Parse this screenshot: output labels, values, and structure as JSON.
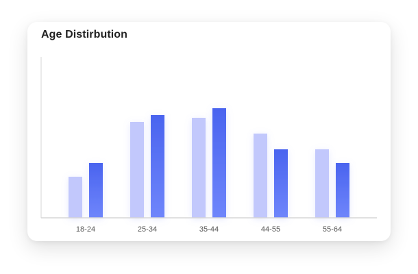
{
  "chart_data": {
    "type": "bar",
    "title": "Age Distirbution",
    "categories": [
      "18-24",
      "25-34",
      "35-44",
      "44-55",
      "55-64"
    ],
    "series": [
      {
        "values": [
          60,
          140,
          146,
          123,
          100
        ]
      },
      {
        "values": [
          80,
          150,
          160,
          100,
          80
        ]
      }
    ],
    "ylim": [
      0,
      235
    ],
    "grid": false,
    "legend": "none",
    "colors": {
      "series0": "#c2c8fc",
      "series1_top": "#4a64ef",
      "series1_bottom": "#6f86fb",
      "axis": "#d6d6d6"
    }
  }
}
